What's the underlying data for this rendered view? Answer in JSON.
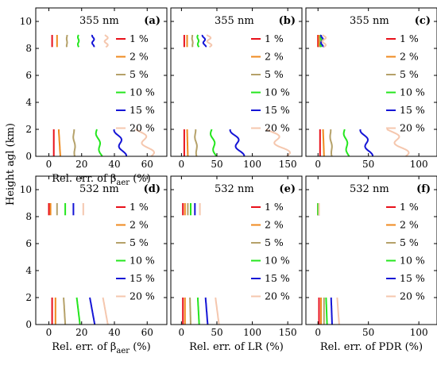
{
  "figure": {
    "ylabel": "Height agl (km)",
    "colors": {
      "1 %": "#e8101a",
      "2 %": "#ef8a1f",
      "5 %": "#b5a169",
      "10 %": "#24e61e",
      "15 %": "#1414d6",
      "20 %": "#f5c7ae"
    }
  },
  "chart_data": [
    {
      "type": "line",
      "panel": "(a)",
      "wavelength": "355 nm",
      "xlabel": "Rel. err. of β",
      "xlabel_sub": "aer",
      "xlabel_unit": " (%)",
      "xlim": [
        -8,
        72
      ],
      "ylim": [
        0,
        11
      ],
      "xticks": [
        0,
        20,
        40,
        60
      ],
      "yticks": [
        0,
        2,
        4,
        6,
        8,
        10
      ],
      "showYTicks": true,
      "legend_position": "right",
      "series": [
        {
          "name": "1 %",
          "low": [
            [
              3,
              0
            ],
            [
              3,
              2
            ]
          ],
          "high": [
            [
              2,
              8.1
            ],
            [
              2,
              9
            ]
          ],
          "jitter": 0
        },
        {
          "name": "2 %",
          "low": [
            [
              7,
              0
            ],
            [
              6,
              2
            ]
          ],
          "high": [
            [
              5,
              8.1
            ],
            [
              5,
              9
            ]
          ],
          "jitter": 0
        },
        {
          "name": "5 %",
          "low": [
            [
              16,
              0
            ],
            [
              15,
              2
            ]
          ],
          "high": [
            [
              11,
              8.1
            ],
            [
              11,
              9
            ]
          ],
          "jitter": 0.4
        },
        {
          "name": "10 %",
          "low": [
            [
              32,
              0
            ],
            [
              29,
              2
            ]
          ],
          "high": [
            [
              18,
              8.1
            ],
            [
              18,
              9
            ]
          ],
          "jitter": 0.8
        },
        {
          "name": "15 %",
          "low": [
            [
              46,
              0
            ],
            [
              41,
              2
            ]
          ],
          "high": [
            [
              27,
              8.1
            ],
            [
              27,
              9
            ]
          ],
          "jitter": 1.5
        },
        {
          "name": "20 %",
          "low": [
            [
              63,
              0
            ],
            [
              55,
              2
            ]
          ],
          "high": [
            [
              35,
              8.1
            ],
            [
              35,
              9
            ]
          ],
          "jitter": 2.5
        }
      ]
    },
    {
      "type": "line",
      "panel": "(b)",
      "wavelength": "355 nm",
      "xlabel": "",
      "xlabel_sub": "",
      "xlabel_unit": "",
      "xlim": [
        -15,
        170
      ],
      "ylim": [
        0,
        11
      ],
      "xticks": [
        0,
        50,
        100,
        150
      ],
      "yticks": [
        0,
        2,
        4,
        6,
        8,
        10
      ],
      "showYTicks": false,
      "legend_position": "right",
      "series": [
        {
          "name": "1 %",
          "low": [
            [
              4,
              0
            ],
            [
              4,
              2
            ]
          ],
          "high": [
            [
              4,
              8.1
            ],
            [
              4,
              9
            ]
          ],
          "jitter": 0
        },
        {
          "name": "2 %",
          "low": [
            [
              9,
              0
            ],
            [
              8,
              2
            ]
          ],
          "high": [
            [
              8,
              8.1
            ],
            [
              8,
              9
            ]
          ],
          "jitter": 0
        },
        {
          "name": "5 %",
          "low": [
            [
              22,
              0
            ],
            [
              19,
              2
            ]
          ],
          "high": [
            [
              16,
              8.1
            ],
            [
              15,
              9
            ]
          ],
          "jitter": 1
        },
        {
          "name": "10 %",
          "low": [
            [
              48,
              0
            ],
            [
              42,
              2
            ]
          ],
          "high": [
            [
              24,
              8.1
            ],
            [
              23,
              9
            ]
          ],
          "jitter": 2
        },
        {
          "name": "15 %",
          "low": [
            [
              85,
              0
            ],
            [
              72,
              2
            ]
          ],
          "high": [
            [
              33,
              8.1
            ],
            [
              31,
              9
            ]
          ],
          "jitter": 4
        },
        {
          "name": "20 %",
          "low": [
            [
              150,
              0
            ],
            [
              125,
              2
            ]
          ],
          "high": [
            [
              40,
              8.1
            ],
            [
              38,
              9
            ]
          ],
          "jitter": 7
        }
      ]
    },
    {
      "type": "line",
      "panel": "(c)",
      "wavelength": "355 nm",
      "xlabel": "",
      "xlabel_sub": "",
      "xlabel_unit": "",
      "xlim": [
        -12,
        118
      ],
      "ylim": [
        0,
        11
      ],
      "xticks": [
        0,
        50,
        100
      ],
      "yticks": [
        0,
        2,
        4,
        6,
        8,
        10
      ],
      "showYTicks": false,
      "legend_position": "right",
      "series": [
        {
          "name": "1 %",
          "low": [
            [
              2,
              0
            ],
            [
              2,
              2
            ]
          ],
          "high": [
            [
              0,
              8.1
            ],
            [
              0,
              9
            ]
          ],
          "jitter": 0
        },
        {
          "name": "2 %",
          "low": [
            [
              6,
              0
            ],
            [
              5,
              2
            ]
          ],
          "high": [
            [
              1,
              8.1
            ],
            [
              1,
              9
            ]
          ],
          "jitter": 0
        },
        {
          "name": "5 %",
          "low": [
            [
              14,
              0
            ],
            [
              12,
              2
            ]
          ],
          "high": [
            [
              2,
              8.1
            ],
            [
              2,
              9
            ]
          ],
          "jitter": 0.6
        },
        {
          "name": "10 %",
          "low": [
            [
              30,
              0
            ],
            [
              26,
              2
            ]
          ],
          "high": [
            [
              3,
              8.1
            ],
            [
              3,
              9
            ]
          ],
          "jitter": 1.2
        },
        {
          "name": "15 %",
          "low": [
            [
              52,
              0
            ],
            [
              44,
              2
            ]
          ],
          "high": [
            [
              4,
              8.1
            ],
            [
              4,
              9
            ]
          ],
          "jitter": 2.5
        },
        {
          "name": "20 %",
          "low": [
            [
              88,
              0
            ],
            [
              72,
              2
            ]
          ],
          "high": [
            [
              6,
              8.1
            ],
            [
              6,
              9
            ]
          ],
          "jitter": 4.5
        }
      ]
    },
    {
      "type": "line",
      "panel": "(d)",
      "wavelength": "532 nm",
      "xlabel": "Rel. err. of β",
      "xlabel_sub": "aer",
      "xlabel_unit": " (%)",
      "xlim": [
        -8,
        72
      ],
      "ylim": [
        0,
        11
      ],
      "xticks": [
        0,
        20,
        40,
        60
      ],
      "yticks": [
        0,
        2,
        4,
        6,
        8,
        10
      ],
      "showYTicks": true,
      "legend_position": "right",
      "series": [
        {
          "name": "1 %",
          "low": [
            [
              2,
              0
            ],
            [
              2,
              2
            ]
          ],
          "high": [
            [
              0,
              8.1
            ],
            [
              0,
              9
            ]
          ],
          "jitter": 0
        },
        {
          "name": "2 %",
          "low": [
            [
              4,
              0
            ],
            [
              4,
              2
            ]
          ],
          "high": [
            [
              1,
              8.1
            ],
            [
              1,
              9
            ]
          ],
          "jitter": 0
        },
        {
          "name": "5 %",
          "low": [
            [
              10,
              0
            ],
            [
              9,
              2
            ]
          ],
          "high": [
            [
              5,
              8.1
            ],
            [
              5,
              9
            ]
          ],
          "jitter": 0
        },
        {
          "name": "10 %",
          "low": [
            [
              19,
              0
            ],
            [
              17,
              2
            ]
          ],
          "high": [
            [
              10,
              8.1
            ],
            [
              10,
              9
            ]
          ],
          "jitter": 0
        },
        {
          "name": "15 %",
          "low": [
            [
              28,
              0
            ],
            [
              25,
              2
            ]
          ],
          "high": [
            [
              15,
              8.1
            ],
            [
              15,
              9
            ]
          ],
          "jitter": 0
        },
        {
          "name": "20 %",
          "low": [
            [
              36,
              0
            ],
            [
              33,
              2
            ]
          ],
          "high": [
            [
              21,
              8.1
            ],
            [
              21,
              9
            ]
          ],
          "jitter": 0
        }
      ]
    },
    {
      "type": "line",
      "panel": "(e)",
      "wavelength": "532 nm",
      "xlabel": "Rel. err. of LR",
      "xlabel_sub": "",
      "xlabel_unit": " (%)",
      "xlim": [
        -15,
        170
      ],
      "ylim": [
        0,
        11
      ],
      "xticks": [
        0,
        50,
        100,
        150
      ],
      "yticks": [
        0,
        2,
        4,
        6,
        8,
        10
      ],
      "showYTicks": false,
      "legend_position": "right",
      "series": [
        {
          "name": "1 %",
          "low": [
            [
              2,
              0
            ],
            [
              2,
              2
            ]
          ],
          "high": [
            [
              2,
              8.1
            ],
            [
              2,
              9
            ]
          ],
          "jitter": 0
        },
        {
          "name": "2 %",
          "low": [
            [
              5,
              0
            ],
            [
              5,
              2
            ]
          ],
          "high": [
            [
              5,
              8.1
            ],
            [
              5,
              9
            ]
          ],
          "jitter": 0
        },
        {
          "name": "5 %",
          "low": [
            [
              13,
              0
            ],
            [
              12,
              2
            ]
          ],
          "high": [
            [
              9,
              8.1
            ],
            [
              9,
              9
            ]
          ],
          "jitter": 0
        },
        {
          "name": "10 %",
          "low": [
            [
              25,
              0
            ],
            [
              23,
              2
            ]
          ],
          "high": [
            [
              13,
              8.1
            ],
            [
              13,
              9
            ]
          ],
          "jitter": 0
        },
        {
          "name": "15 %",
          "low": [
            [
              37,
              0
            ],
            [
              34,
              2
            ]
          ],
          "high": [
            [
              19,
              8.1
            ],
            [
              19,
              9
            ]
          ],
          "jitter": 0
        },
        {
          "name": "20 %",
          "low": [
            [
              53,
              0
            ],
            [
              48,
              2
            ]
          ],
          "high": [
            [
              26,
              8.1
            ],
            [
              26,
              9
            ]
          ],
          "jitter": 0
        }
      ]
    },
    {
      "type": "line",
      "panel": "(f)",
      "wavelength": "532 nm",
      "xlabel": "Rel. err. of PDR",
      "xlabel_sub": "",
      "xlabel_unit": " (%)",
      "xlim": [
        -12,
        118
      ],
      "ylim": [
        0,
        11
      ],
      "xticks": [
        0,
        50,
        100
      ],
      "yticks": [
        0,
        2,
        4,
        6,
        8,
        10
      ],
      "showYTicks": false,
      "legend_position": "right",
      "series": [
        {
          "name": "1 %",
          "low": [
            [
              1,
              0
            ],
            [
              1,
              2
            ]
          ],
          "high": [
            [
              0,
              8.1
            ],
            [
              0,
              9
            ]
          ],
          "jitter": 0
        },
        {
          "name": "2 %",
          "low": [
            [
              3,
              0
            ],
            [
              3,
              2
            ]
          ],
          "high": [
            [
              0,
              8.1
            ],
            [
              0,
              9
            ]
          ],
          "jitter": 0
        },
        {
          "name": "5 %",
          "low": [
            [
              6,
              0
            ],
            [
              6,
              2
            ]
          ],
          "high": [
            [
              0,
              8.1
            ],
            [
              0,
              9
            ]
          ],
          "jitter": 0
        },
        {
          "name": "10 %",
          "low": [
            [
              9,
              0
            ],
            [
              8,
              2
            ]
          ],
          "high": [
            [
              0,
              8.1
            ],
            [
              0,
              9
            ]
          ],
          "jitter": 0
        },
        {
          "name": "15 %",
          "low": [
            [
              14,
              0
            ],
            [
              13,
              2
            ]
          ],
          "high": [
            [
              1,
              8.1
            ],
            [
              1,
              9
            ]
          ],
          "jitter": 0
        },
        {
          "name": "20 %",
          "low": [
            [
              21,
              0
            ],
            [
              19,
              2
            ]
          ],
          "high": [
            [
              1,
              8.1
            ],
            [
              1,
              9
            ]
          ],
          "jitter": 0
        }
      ]
    }
  ]
}
